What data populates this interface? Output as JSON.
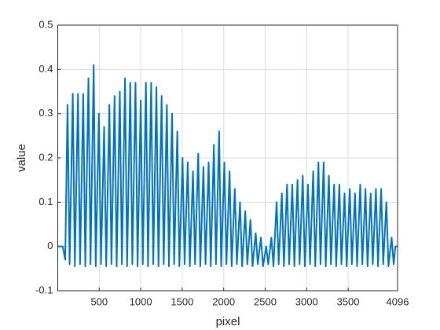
{
  "chart_data": {
    "type": "line",
    "xlabel": "pixel",
    "ylabel": "value",
    "xlim": [
      0,
      4096
    ],
    "ylim": [
      -0.1,
      0.5
    ],
    "xticks": [
      500,
      1000,
      1500,
      2000,
      2500,
      3000,
      3500,
      4096
    ],
    "yticks": [
      -0.1,
      0,
      0.1,
      0.2,
      0.3,
      0.4,
      0.5
    ],
    "grid": true,
    "series": [
      {
        "color": "#0072BD",
        "x": [
          0,
          60,
          90,
          118,
          143,
          181,
          206,
          244,
          269,
          307,
          332,
          370,
          395,
          433,
          458,
          496,
          521,
          559,
          584,
          622,
          647,
          685,
          710,
          748,
          773,
          811,
          836,
          874,
          899,
          937,
          962,
          1000,
          1025,
          1063,
          1088,
          1126,
          1151,
          1189,
          1214,
          1252,
          1277,
          1315,
          1340,
          1378,
          1403,
          1441,
          1466,
          1504,
          1529,
          1567,
          1592,
          1630,
          1655,
          1693,
          1718,
          1756,
          1781,
          1819,
          1844,
          1882,
          1907,
          1945,
          1970,
          2008,
          2033,
          2071,
          2096,
          2134,
          2159,
          2197,
          2222,
          2260,
          2285,
          2323,
          2348,
          2386,
          2411,
          2449,
          2474,
          2512,
          2537,
          2575,
          2600,
          2638,
          2663,
          2701,
          2726,
          2764,
          2789,
          2827,
          2852,
          2890,
          2915,
          2953,
          2978,
          3016,
          3041,
          3079,
          3104,
          3142,
          3167,
          3205,
          3230,
          3268,
          3293,
          3331,
          3356,
          3394,
          3419,
          3457,
          3482,
          3520,
          3545,
          3583,
          3608,
          3646,
          3671,
          3709,
          3734,
          3772,
          3797,
          3835,
          3860,
          3898,
          3923,
          3961,
          3986,
          4024,
          4049,
          4070,
          4096
        ],
        "values": [
          0,
          0,
          -0.03,
          0.32,
          -0.04,
          0.345,
          -0.045,
          0.345,
          -0.04,
          0.345,
          -0.045,
          0.38,
          -0.04,
          0.41,
          -0.045,
          0.3,
          -0.04,
          0.27,
          -0.045,
          0.32,
          -0.04,
          0.34,
          -0.045,
          0.35,
          -0.04,
          0.38,
          -0.045,
          0.37,
          -0.04,
          0.37,
          -0.045,
          0.33,
          -0.04,
          0.37,
          -0.045,
          0.37,
          -0.04,
          0.36,
          -0.045,
          0.34,
          -0.04,
          0.32,
          -0.045,
          0.3,
          -0.04,
          0.26,
          -0.045,
          0.2,
          -0.04,
          0.19,
          -0.045,
          0.17,
          -0.04,
          0.21,
          -0.045,
          0.18,
          -0.04,
          0.19,
          -0.045,
          0.23,
          -0.04,
          0.26,
          -0.045,
          0.19,
          -0.04,
          0.17,
          -0.045,
          0.13,
          -0.04,
          0.1,
          -0.045,
          0.08,
          -0.04,
          0.06,
          -0.045,
          0.03,
          -0.04,
          0.02,
          -0.045,
          0,
          -0.04,
          0.02,
          -0.045,
          0.1,
          -0.04,
          0.12,
          -0.045,
          0.14,
          -0.04,
          0.14,
          -0.045,
          0.15,
          -0.04,
          0.16,
          -0.045,
          0.14,
          -0.04,
          0.17,
          -0.045,
          0.19,
          -0.04,
          0.19,
          -0.045,
          0.16,
          -0.04,
          0.14,
          -0.045,
          0.14,
          -0.04,
          0.12,
          -0.045,
          0.13,
          -0.04,
          0.12,
          -0.045,
          0.14,
          -0.04,
          0.13,
          -0.045,
          0.12,
          -0.04,
          0.13,
          -0.045,
          0.13,
          -0.04,
          0.1,
          -0.045,
          0.02,
          -0.04,
          0,
          0
        ]
      }
    ]
  }
}
